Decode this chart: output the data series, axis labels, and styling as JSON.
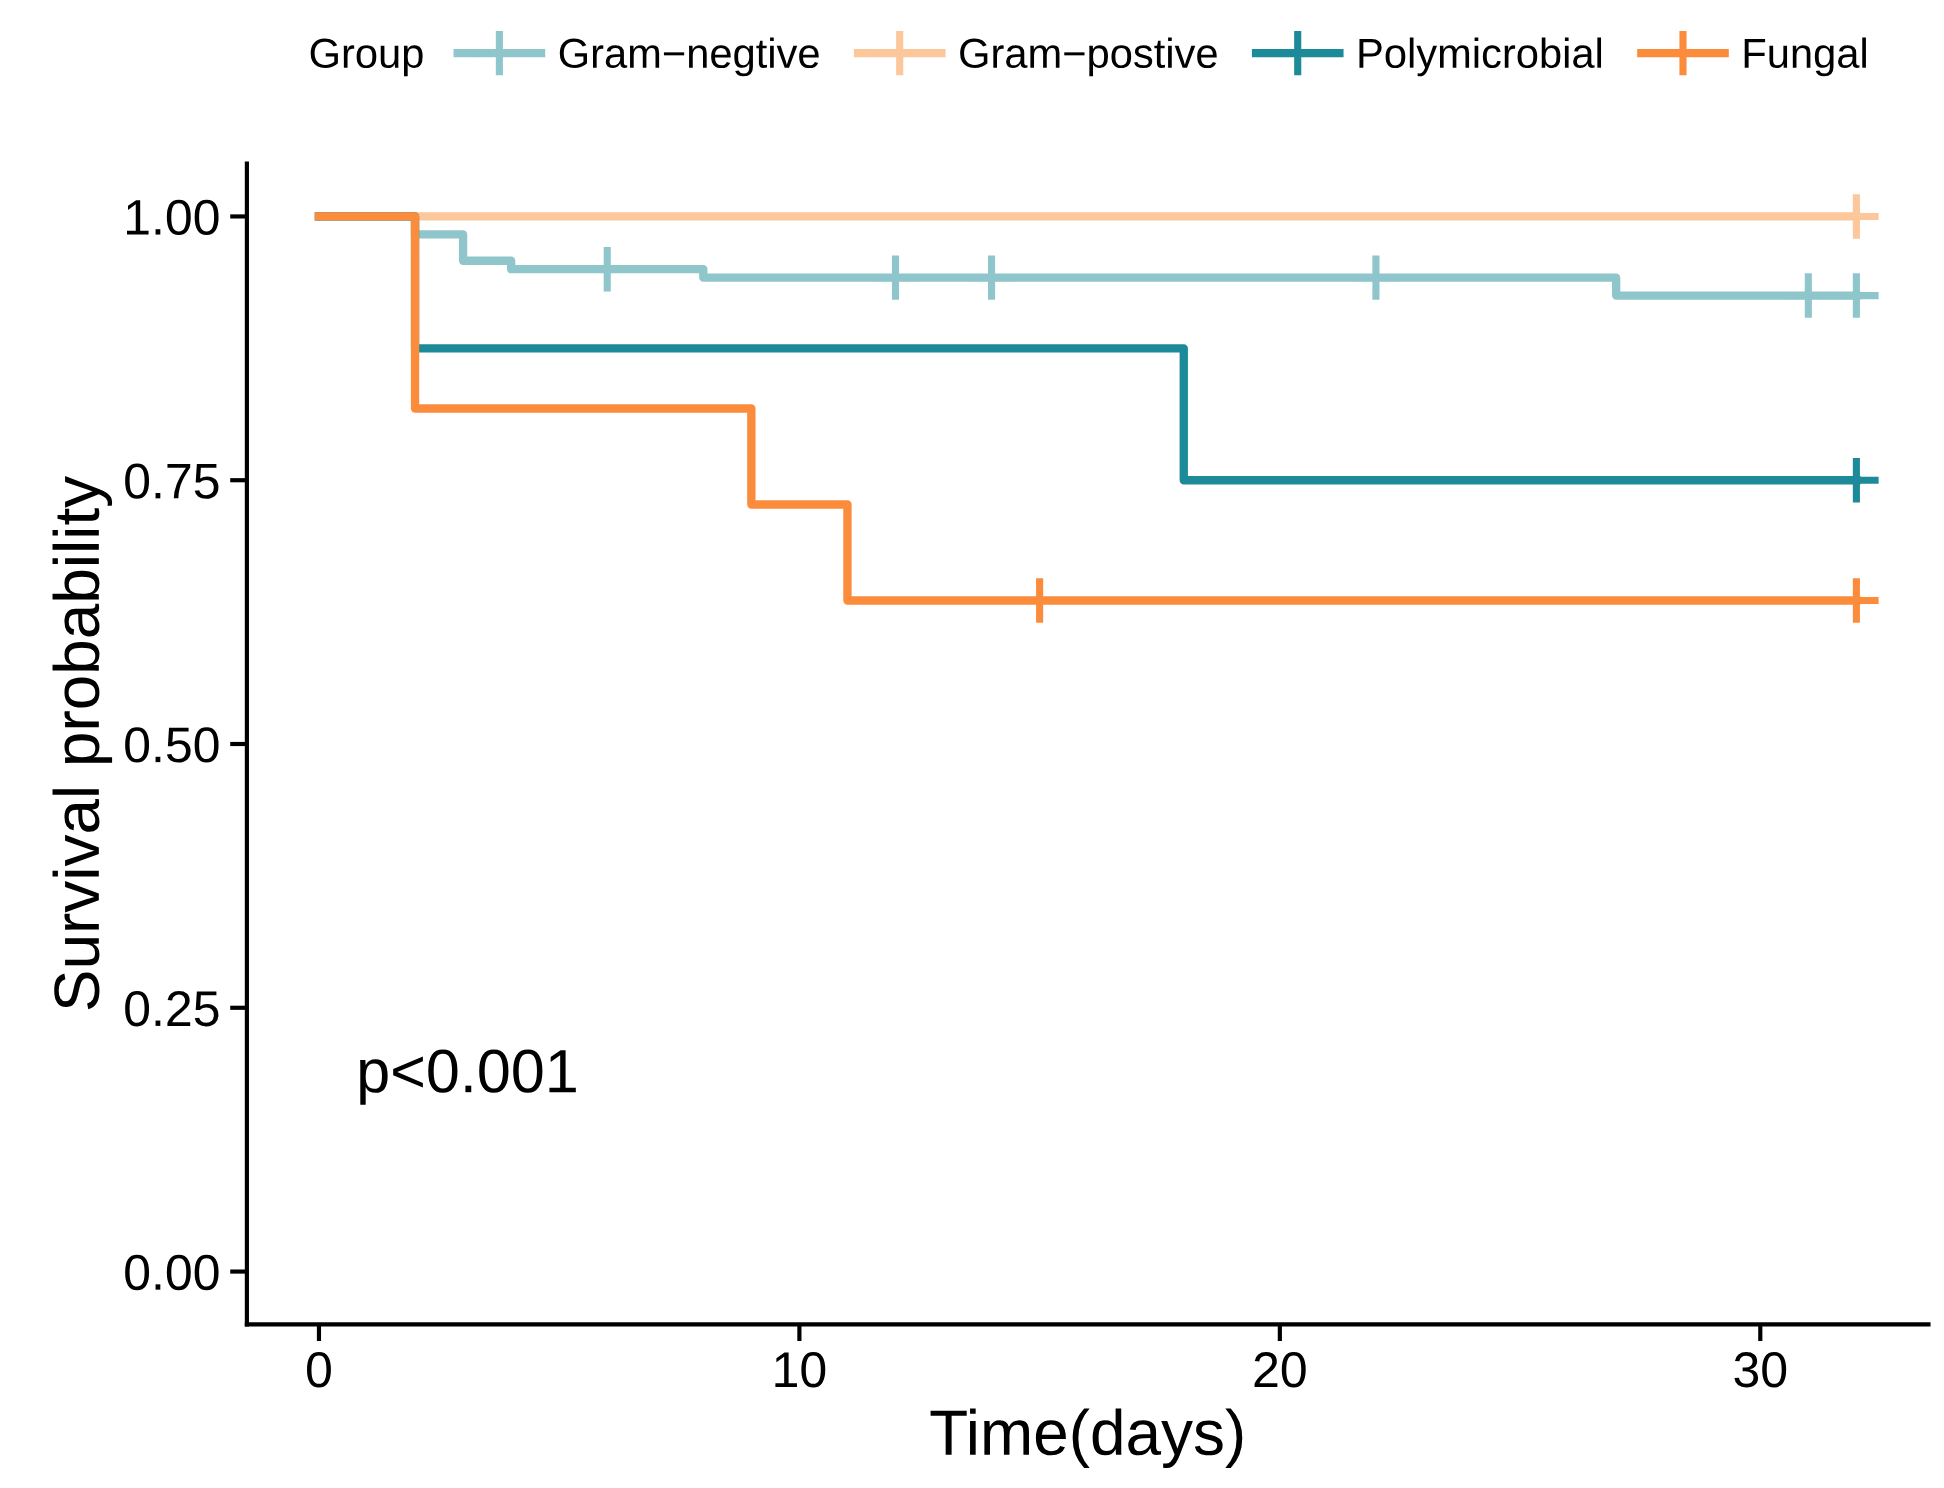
{
  "chart_data": {
    "type": "step",
    "xlabel": "Time(days)",
    "ylabel": "Survival probability",
    "legend_title": "Group",
    "legend": "top",
    "xlim": [
      -1.5,
      33.5
    ],
    "xticks": [
      0,
      10,
      20,
      30
    ],
    "ylim": [
      -0.05,
      1.05
    ],
    "yticks": [
      {
        "value": 0,
        "label": "0.00"
      },
      {
        "value": 0.25,
        "label": "0.25"
      },
      {
        "value": 0.5,
        "label": "0.50"
      },
      {
        "value": 0.75,
        "label": "0.75"
      },
      {
        "value": 1,
        "label": "1.00"
      }
    ],
    "grid": false,
    "line_style": "solid",
    "annotations": [
      "p<0.001"
    ],
    "series": [
      {
        "name": "Gram−negtive",
        "color": "#8fc6cb",
        "x": [
          0,
          2,
          3,
          4,
          8,
          27,
          32
        ],
        "values": [
          1.0,
          0.983,
          0.958,
          0.95,
          0.942,
          0.925,
          0.925
        ]
      },
      {
        "name": "Gram−postive",
        "color": "#fcc79a",
        "x": [
          0,
          32
        ],
        "values": [
          1.0,
          1.0
        ]
      },
      {
        "name": "Polymicrobial",
        "color": "#1d8a99",
        "x": [
          0,
          2,
          18,
          32
        ],
        "values": [
          1.0,
          0.875,
          0.75,
          0.75
        ]
      },
      {
        "name": "Fungal",
        "color": "#fb8c3c",
        "x": [
          0,
          2,
          9,
          11,
          32
        ],
        "values": [
          1.0,
          0.818,
          0.727,
          0.636,
          0.636
        ]
      },
      {
        "type": "scatter",
        "marker": "cross",
        "color": "#8fc6cb",
        "x": [
          6,
          12,
          14,
          22,
          31,
          32
        ],
        "values": [
          0.95,
          0.942,
          0.942,
          0.942,
          0.925,
          0.925
        ]
      },
      {
        "type": "scatter",
        "marker": "cross",
        "color": "#fcc79a",
        "x": [
          32
        ],
        "values": [
          1.0
        ]
      },
      {
        "type": "scatter",
        "marker": "cross",
        "color": "#1d8a99",
        "x": [
          32
        ],
        "values": [
          0.75
        ]
      },
      {
        "type": "scatter",
        "marker": "cross",
        "color": "#fb8c3c",
        "x": [
          15,
          32
        ],
        "values": [
          0.636,
          0.636
        ]
      }
    ]
  }
}
